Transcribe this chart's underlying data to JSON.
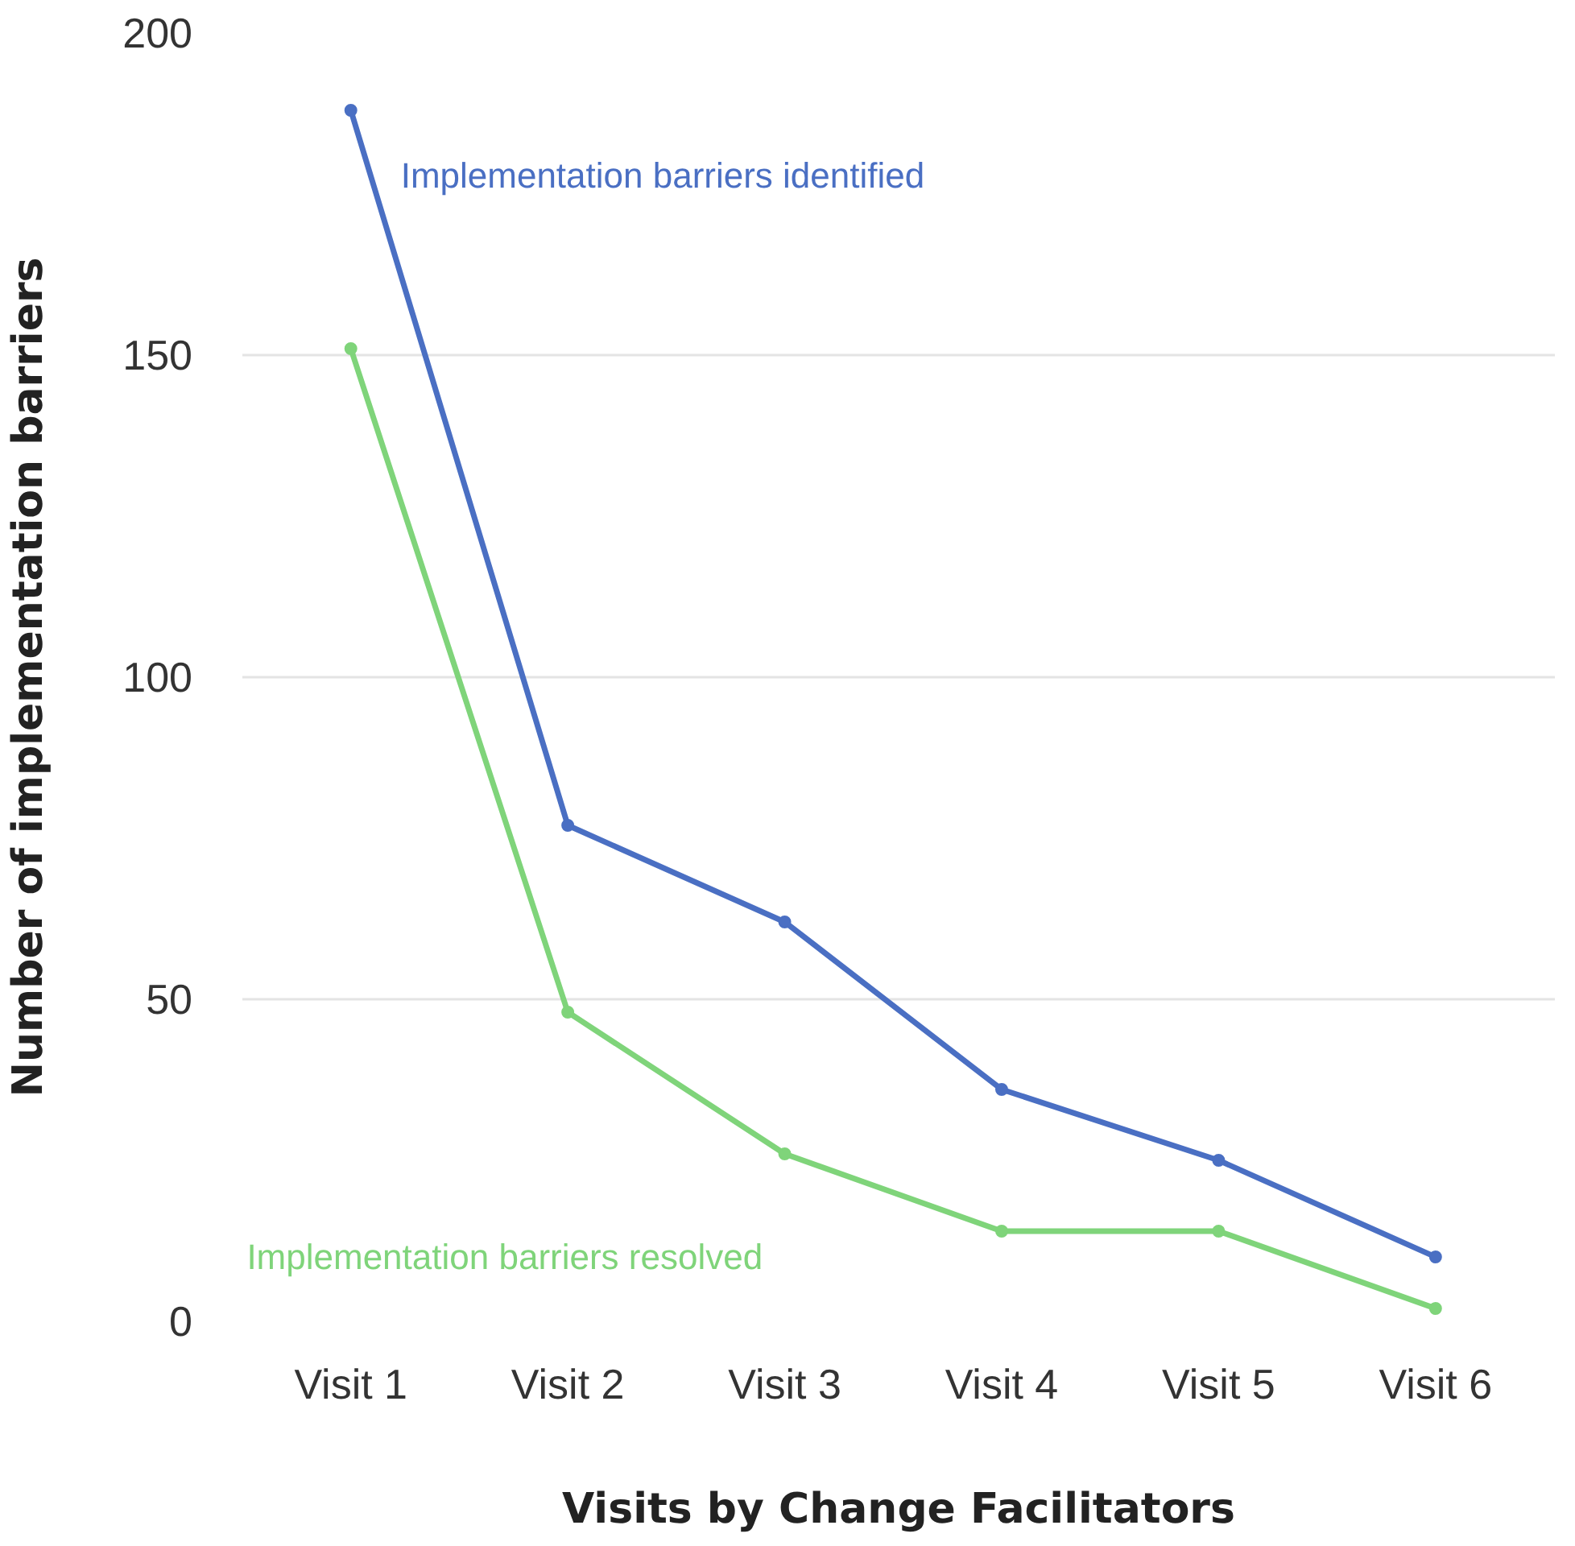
{
  "chart_data": {
    "type": "line",
    "xlabel": "Visits by Change Facilitators",
    "ylabel": "Number of implementation barriers",
    "categories": [
      "Visit 1",
      "Visit 2",
      "Visit 3",
      "Visit 4",
      "Visit 5",
      "Visit 6"
    ],
    "series": [
      {
        "name": "Implementation barriers identified",
        "color": "#4a6fc3",
        "values": [
          188,
          77,
          62,
          36,
          25,
          10
        ]
      },
      {
        "name": "Implementation barriers resolved",
        "color": "#7fd47a",
        "values": [
          151,
          48,
          26,
          14,
          14,
          2
        ]
      }
    ],
    "ylim": [
      0,
      200
    ],
    "yticks": [
      0,
      50,
      100,
      150,
      200
    ],
    "grid": "y",
    "marker": "circle",
    "line_style": "solid",
    "legend": false
  }
}
